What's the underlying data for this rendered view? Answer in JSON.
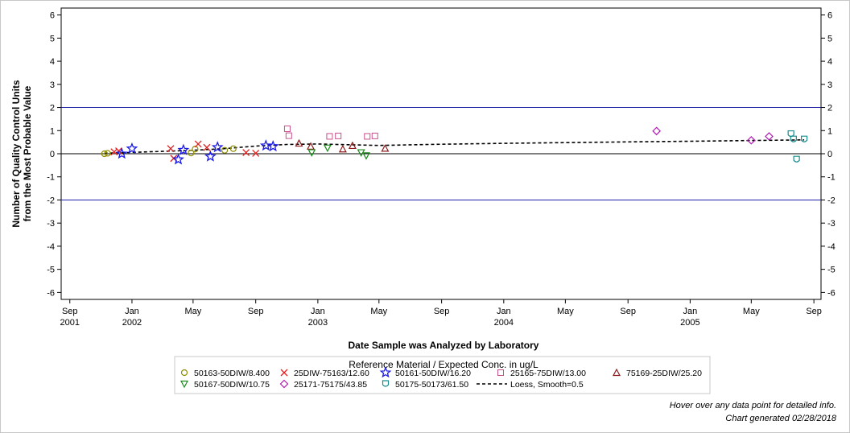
{
  "chart_data": {
    "type": "scatter",
    "xlabel": "Date Sample was Analyzed by Laboratory",
    "ylabel": [
      "Number of Quality Control Units",
      "from the Most Probable Value"
    ],
    "xlim": [
      "2001-08-15",
      "2005-09-15"
    ],
    "ylim": [
      -6.3,
      6.3
    ],
    "y_ticks": [
      -6,
      -5,
      -4,
      -3,
      -2,
      -1,
      0,
      1,
      2,
      3,
      4,
      5,
      6
    ],
    "x_ticks": [
      {
        "date": "2001-09-01",
        "label": "Sep",
        "year": "2001"
      },
      {
        "date": "2002-01-01",
        "label": "Jan",
        "year": "2002"
      },
      {
        "date": "2002-05-01",
        "label": "May",
        "year": ""
      },
      {
        "date": "2002-09-01",
        "label": "Sep",
        "year": ""
      },
      {
        "date": "2003-01-01",
        "label": "Jan",
        "year": "2003"
      },
      {
        "date": "2003-05-01",
        "label": "May",
        "year": ""
      },
      {
        "date": "2003-09-01",
        "label": "Sep",
        "year": ""
      },
      {
        "date": "2004-01-01",
        "label": "Jan",
        "year": "2004"
      },
      {
        "date": "2004-05-01",
        "label": "May",
        "year": ""
      },
      {
        "date": "2004-09-01",
        "label": "Sep",
        "year": ""
      },
      {
        "date": "2005-01-01",
        "label": "Jan",
        "year": "2005"
      },
      {
        "date": "2005-05-01",
        "label": "May",
        "year": ""
      },
      {
        "date": "2005-09-01",
        "label": "Sep",
        "year": ""
      }
    ],
    "reference_lines": [
      {
        "y": 2,
        "color": "#1f1fa8"
      },
      {
        "y": -2,
        "color": "#1f1fa8"
      },
      {
        "y": 0,
        "color": "#000000"
      }
    ],
    "legend_title": "Reference Material / Expected Conc. in ug/L",
    "legend_position": "bottom",
    "series": [
      {
        "name": "50163-50DIW/8.400",
        "marker": "circle",
        "color": "#8c8c00",
        "points": [
          [
            "2001-11-08",
            0.0
          ],
          [
            "2001-11-14",
            0.02
          ],
          [
            "2002-04-27",
            0.03
          ],
          [
            "2002-05-05",
            0.2
          ],
          [
            "2002-07-02",
            0.15
          ],
          [
            "2002-07-19",
            0.22
          ]
        ]
      },
      {
        "name": "25DIW-75163/12.60",
        "marker": "x",
        "color": "#e02020",
        "points": [
          [
            "2001-11-27",
            0.08
          ],
          [
            "2001-12-06",
            0.12
          ],
          [
            "2002-03-18",
            0.22
          ],
          [
            "2002-03-24",
            -0.2
          ],
          [
            "2002-05-11",
            0.42
          ],
          [
            "2002-05-28",
            0.27
          ],
          [
            "2002-08-13",
            0.05
          ],
          [
            "2002-09-01",
            0.02
          ]
        ]
      },
      {
        "name": "50161-50DIW/16.20",
        "marker": "star",
        "color": "#1a1ae6",
        "points": [
          [
            "2001-12-12",
            0.0
          ],
          [
            "2002-01-01",
            0.22
          ],
          [
            "2002-04-02",
            -0.25
          ],
          [
            "2002-04-12",
            0.16
          ],
          [
            "2002-06-04",
            -0.12
          ],
          [
            "2002-06-18",
            0.28
          ],
          [
            "2002-09-21",
            0.35
          ],
          [
            "2002-10-05",
            0.32
          ]
        ]
      },
      {
        "name": "25165-75DIW/13.00",
        "marker": "square",
        "color": "#c8508c",
        "points": [
          [
            "2002-11-02",
            1.08
          ],
          [
            "2002-11-05",
            0.78
          ],
          [
            "2003-01-24",
            0.75
          ],
          [
            "2003-02-10",
            0.77
          ],
          [
            "2003-04-08",
            0.75
          ],
          [
            "2003-04-23",
            0.77
          ]
        ]
      },
      {
        "name": "75169-25DIW/25.20",
        "marker": "triangle-up",
        "color": "#8c1a1a",
        "points": [
          [
            "2002-11-25",
            0.45
          ],
          [
            "2002-12-18",
            0.32
          ],
          [
            "2003-02-19",
            0.2
          ],
          [
            "2003-03-10",
            0.35
          ],
          [
            "2003-05-13",
            0.23
          ]
        ]
      },
      {
        "name": "50167-50DIW/10.75",
        "marker": "triangle-down",
        "color": "#1a8c1a",
        "points": [
          [
            "2002-12-20",
            0.05
          ],
          [
            "2003-01-20",
            0.25
          ],
          [
            "2003-03-27",
            0.05
          ],
          [
            "2003-04-06",
            -0.08
          ]
        ]
      },
      {
        "name": "25171-75175/43.85",
        "marker": "diamond",
        "color": "#b41ab4",
        "points": [
          [
            "2004-10-27",
            0.98
          ],
          [
            "2005-05-01",
            0.58
          ],
          [
            "2005-06-05",
            0.75
          ]
        ]
      },
      {
        "name": "50175-50173/61.50",
        "marker": "cup",
        "color": "#1a8c8c",
        "points": [
          [
            "2005-07-18",
            0.85
          ],
          [
            "2005-07-23",
            0.62
          ],
          [
            "2005-07-29",
            -0.25
          ],
          [
            "2005-08-13",
            0.62
          ]
        ]
      }
    ],
    "smooth": {
      "name": "Loess, Smooth=0.5",
      "points": [
        [
          "2001-11-08",
          0.02
        ],
        [
          "2002-01-01",
          0.06
        ],
        [
          "2002-03-01",
          0.1
        ],
        [
          "2002-05-01",
          0.15
        ],
        [
          "2002-07-01",
          0.22
        ],
        [
          "2002-09-01",
          0.33
        ],
        [
          "2002-11-01",
          0.4
        ],
        [
          "2003-01-01",
          0.42
        ],
        [
          "2003-03-01",
          0.39
        ],
        [
          "2003-05-01",
          0.36
        ],
        [
          "2003-09-01",
          0.41
        ],
        [
          "2004-01-01",
          0.45
        ],
        [
          "2004-05-01",
          0.48
        ],
        [
          "2004-09-01",
          0.51
        ],
        [
          "2005-01-01",
          0.54
        ],
        [
          "2005-05-01",
          0.57
        ],
        [
          "2005-08-13",
          0.6
        ]
      ]
    }
  },
  "footer": {
    "hover_note": "Hover over any data point for detailed info.",
    "generated": "Chart generated 02/28/2018"
  }
}
